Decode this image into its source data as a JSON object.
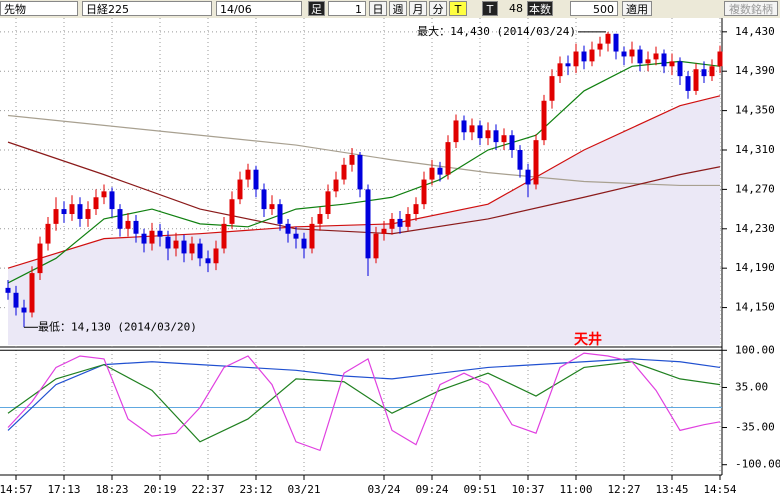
{
  "toolbar": {
    "product": "先物",
    "index": "日経225",
    "month": "14/06",
    "ashi": "足",
    "interval": "1",
    "buttons": [
      "日",
      "週",
      "月",
      "分",
      "T"
    ],
    "t": "T",
    "count": "48",
    "count_label": "本数",
    "bars": "500",
    "apply": "適用",
    "multi": "複数銘柄"
  },
  "chart_data": [
    {
      "type": "candlestick",
      "max_label": "最大：14,430 (2014/03/24)",
      "min_label": "最低：14,130 (2014/03/20)",
      "categories": [
        null,
        "14:57",
        null,
        null,
        null,
        null,
        null,
        "17:13",
        null,
        null,
        null,
        null,
        null,
        "18:23",
        null,
        null,
        null,
        null,
        null,
        "20:19",
        null,
        null,
        null,
        null,
        null,
        "22:37",
        null,
        null,
        null,
        null,
        null,
        "23:12",
        null,
        null,
        null,
        null,
        null,
        "03/21",
        null,
        null,
        null,
        null,
        null,
        null,
        null,
        null,
        null,
        "03/24",
        null,
        null,
        null,
        null,
        null,
        "09:24",
        null,
        null,
        null,
        null,
        null,
        "09:51",
        null,
        null,
        null,
        null,
        null,
        "10:37",
        null,
        null,
        null,
        null,
        null,
        "11:00",
        null,
        null,
        null,
        null,
        null,
        "12:27",
        null,
        null,
        null,
        null,
        null,
        "13:45",
        null,
        null,
        null,
        null,
        null,
        "14:54"
      ],
      "open": [
        14170,
        14165,
        14150,
        14145,
        14185,
        14215,
        14235,
        14250,
        14245,
        14255,
        14240,
        14250,
        14262,
        14268,
        14250,
        14230,
        14238,
        14225,
        14215,
        14228,
        14222,
        14210,
        14218,
        14205,
        14215,
        14200,
        14195,
        14210,
        14235,
        14260,
        14280,
        14290,
        14270,
        14250,
        14255,
        14235,
        14225,
        14220,
        14210,
        14235,
        14245,
        14268,
        14280,
        14295,
        14305,
        14270,
        14200,
        14225,
        14230,
        14240,
        14232,
        14245,
        14255,
        14280,
        14292,
        14285,
        14318,
        14340,
        14328,
        14335,
        14322,
        14330,
        14318,
        14325,
        14310,
        14290,
        14275,
        14320,
        14360,
        14385,
        14398,
        14395,
        14410,
        14400,
        14412,
        14418,
        14428,
        14410,
        14405,
        14412,
        14398,
        14402,
        14408,
        14395,
        14400,
        14385,
        14370,
        14392,
        14385,
        14395
      ],
      "high": [
        14178,
        14172,
        14158,
        14192,
        14222,
        14242,
        14262,
        14258,
        14264,
        14262,
        14258,
        14270,
        14275,
        14272,
        14255,
        14246,
        14244,
        14230,
        14236,
        14235,
        14228,
        14226,
        14224,
        14222,
        14220,
        14208,
        14218,
        14242,
        14268,
        14288,
        14296,
        14294,
        14276,
        14264,
        14260,
        14240,
        14232,
        14226,
        14242,
        14252,
        14275,
        14288,
        14302,
        14312,
        14308,
        14275,
        14232,
        14238,
        14246,
        14248,
        14252,
        14262,
        14288,
        14300,
        14298,
        14325,
        14346,
        14345,
        14342,
        14340,
        14338,
        14336,
        14332,
        14330,
        14315,
        14296,
        14326,
        14366,
        14392,
        14405,
        14406,
        14418,
        14416,
        14420,
        14425,
        14430,
        14428,
        14415,
        14420,
        14416,
        14410,
        14415,
        14412,
        14408,
        14404,
        14390,
        14398,
        14400,
        14402,
        14416
      ],
      "low": [
        14158,
        14142,
        14130,
        14140,
        14178,
        14208,
        14228,
        14236,
        14238,
        14232,
        14232,
        14244,
        14255,
        14242,
        14222,
        14222,
        14216,
        14206,
        14208,
        14212,
        14198,
        14202,
        14196,
        14198,
        14192,
        14186,
        14188,
        14205,
        14230,
        14255,
        14272,
        14262,
        14242,
        14244,
        14228,
        14216,
        14210,
        14200,
        14205,
        14228,
        14240,
        14262,
        14275,
        14288,
        14262,
        14182,
        14195,
        14218,
        14224,
        14225,
        14228,
        14238,
        14250,
        14274,
        14278,
        14280,
        14312,
        14320,
        14320,
        14315,
        14315,
        14310,
        14310,
        14302,
        14282,
        14262,
        14270,
        14315,
        14352,
        14378,
        14386,
        14388,
        14392,
        14395,
        14405,
        14410,
        14402,
        14396,
        14398,
        14390,
        14390,
        14396,
        14388,
        14386,
        14376,
        14362,
        14366,
        14378,
        14380,
        14388
      ],
      "close": [
        14165,
        14150,
        14145,
        14185,
        14215,
        14235,
        14250,
        14245,
        14255,
        14240,
        14250,
        14262,
        14268,
        14250,
        14230,
        14238,
        14225,
        14215,
        14228,
        14222,
        14210,
        14218,
        14205,
        14215,
        14200,
        14195,
        14210,
        14235,
        14260,
        14280,
        14290,
        14270,
        14250,
        14255,
        14235,
        14225,
        14220,
        14210,
        14235,
        14245,
        14268,
        14280,
        14295,
        14305,
        14270,
        14200,
        14225,
        14230,
        14240,
        14232,
        14245,
        14255,
        14280,
        14292,
        14285,
        14318,
        14340,
        14328,
        14335,
        14322,
        14330,
        14318,
        14325,
        14310,
        14290,
        14275,
        14320,
        14360,
        14385,
        14398,
        14395,
        14410,
        14400,
        14412,
        14418,
        14428,
        14410,
        14405,
        14412,
        14398,
        14402,
        14408,
        14395,
        14400,
        14385,
        14370,
        14392,
        14385,
        14395,
        14410
      ],
      "up_color": "#e00000",
      "down_color": "#0000dd",
      "lines": [
        {
          "color": "#a8a090",
          "x": [
            0,
            12,
            24,
            36,
            48,
            60,
            72,
            84,
            89
          ],
          "values": [
            14345,
            14335,
            14325,
            14315,
            14300,
            14287,
            14278,
            14274,
            14274
          ]
        },
        {
          "color": "#8b1a1a",
          "x": [
            0,
            12,
            24,
            36,
            48,
            60,
            72,
            84,
            89
          ],
          "values": [
            14318,
            14285,
            14250,
            14230,
            14225,
            14240,
            14262,
            14285,
            14293
          ]
        },
        {
          "color": "#d01010",
          "area": true,
          "x": [
            0,
            12,
            24,
            36,
            48,
            60,
            72,
            84,
            89
          ],
          "values": [
            14190,
            14220,
            14225,
            14232,
            14235,
            14255,
            14310,
            14355,
            14365
          ]
        },
        {
          "color": "#108010",
          "x": [
            0,
            6,
            12,
            18,
            24,
            30,
            36,
            42,
            48,
            54,
            60,
            66,
            72,
            78,
            84,
            89
          ],
          "values": [
            14175,
            14200,
            14240,
            14250,
            14235,
            14232,
            14250,
            14255,
            14262,
            14280,
            14310,
            14325,
            14370,
            14395,
            14400,
            14395
          ]
        }
      ],
      "ylim": [
        14112,
        14442
      ],
      "yticks": [
        {
          "value": 14430,
          "label": "14,430"
        },
        {
          "value": 14390,
          "label": "14,390"
        },
        {
          "value": 14350,
          "label": "14,350"
        },
        {
          "value": 14310,
          "label": "14,310"
        },
        {
          "value": 14270,
          "label": "14,270"
        },
        {
          "value": 14230,
          "label": "14,230"
        },
        {
          "value": 14190,
          "label": "14,190"
        },
        {
          "value": 14150,
          "label": "14,150"
        }
      ],
      "grid": true
    },
    {
      "type": "line",
      "annotation": "天井",
      "series": [
        {
          "color": "#2050d0",
          "x": [
            0,
            6,
            12,
            18,
            24,
            30,
            36,
            42,
            48,
            54,
            60,
            66,
            72,
            78,
            84,
            89
          ],
          "values": [
            -40,
            40,
            75,
            80,
            75,
            70,
            65,
            55,
            50,
            60,
            70,
            75,
            80,
            85,
            80,
            70
          ]
        },
        {
          "color": "#208020",
          "x": [
            0,
            6,
            12,
            18,
            24,
            30,
            36,
            42,
            48,
            54,
            60,
            66,
            72,
            78,
            84,
            89
          ],
          "values": [
            -10,
            50,
            75,
            30,
            -60,
            -20,
            50,
            45,
            -10,
            30,
            60,
            20,
            70,
            80,
            50,
            40
          ]
        },
        {
          "color": "#e040e0",
          "x": [
            0,
            3,
            6,
            9,
            12,
            15,
            18,
            21,
            24,
            27,
            30,
            33,
            36,
            39,
            42,
            45,
            48,
            51,
            54,
            57,
            60,
            63,
            66,
            69,
            72,
            75,
            78,
            81,
            84,
            87,
            89
          ],
          "values": [
            -35,
            10,
            70,
            90,
            85,
            -20,
            -50,
            -45,
            0,
            70,
            90,
            40,
            -60,
            -75,
            60,
            85,
            -40,
            -65,
            40,
            60,
            40,
            -30,
            -45,
            70,
            95,
            90,
            80,
            30,
            -40,
            -30,
            -25
          ]
        }
      ],
      "ylim": [
        -118,
        104
      ],
      "yticks": [
        {
          "value": 100,
          "label": "100.00"
        },
        {
          "value": 35,
          "label": "35.00"
        },
        {
          "value": -35,
          "label": "-35.00"
        },
        {
          "value": -100,
          "label": "-100.00"
        }
      ]
    }
  ]
}
